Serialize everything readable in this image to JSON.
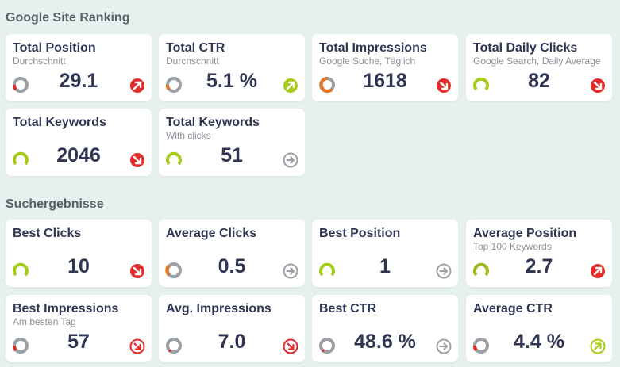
{
  "sections": {
    "ranking_title": "Google Site Ranking",
    "search_title": "Suchergebnisse"
  },
  "cards": [
    {
      "title": "Total Position",
      "subtitle": "Durchschnitt",
      "value": "29.1",
      "gauge": "grey-red",
      "trend": "down-red-ne"
    },
    {
      "title": "Total CTR",
      "subtitle": "Durchschnitt",
      "value": "5.1 %",
      "gauge": "grey-orange",
      "trend": "up-green"
    },
    {
      "title": "Total Impressions",
      "subtitle": "Google Suche, Täglich",
      "value": "1618",
      "gauge": "orange",
      "trend": "down-red"
    },
    {
      "title": "Total Daily Clicks",
      "subtitle": "Google Search, Daily Average",
      "value": "82",
      "gauge": "green",
      "trend": "down-red"
    },
    {
      "title": "Total Keywords",
      "subtitle": "",
      "value": "2046",
      "gauge": "green",
      "trend": "down-red"
    },
    {
      "title": "Total Keywords",
      "subtitle": "With clicks",
      "value": "51",
      "gauge": "green",
      "trend": "neutral-grey"
    },
    {
      "title": "Best Clicks",
      "subtitle": "",
      "value": "10",
      "gauge": "green",
      "trend": "down-red"
    },
    {
      "title": "Average Clicks",
      "subtitle": "",
      "value": "0.5",
      "gauge": "grey-orange",
      "trend": "neutral-grey"
    },
    {
      "title": "Best Position",
      "subtitle": "",
      "value": "1",
      "gauge": "green",
      "trend": "neutral-grey"
    },
    {
      "title": "Average Position",
      "subtitle": "Top 100 Keywords",
      "value": "2.7",
      "gauge": "olive",
      "trend": "down-red-ne"
    },
    {
      "title": "Best Impressions",
      "subtitle": "Am besten Tag",
      "value": "57",
      "gauge": "grey-red",
      "trend": "down-red-outline"
    },
    {
      "title": "Avg. Impressions",
      "subtitle": "",
      "value": "7.0",
      "gauge": "grey-thin",
      "trend": "down-red-outline"
    },
    {
      "title": "Best CTR",
      "subtitle": "",
      "value": "48.6 %",
      "gauge": "grey-thin",
      "trend": "neutral-grey-outline"
    },
    {
      "title": "Average CTR",
      "subtitle": "",
      "value": "4.4 %",
      "gauge": "grey-red",
      "trend": "up-green-outline"
    }
  ],
  "colors": {
    "background": "#e6f1ef",
    "green": "#a5cc17",
    "red": "#e52a2a",
    "orange": "#e67420",
    "grey": "#9aa0a6",
    "navy": "#2f3552"
  }
}
